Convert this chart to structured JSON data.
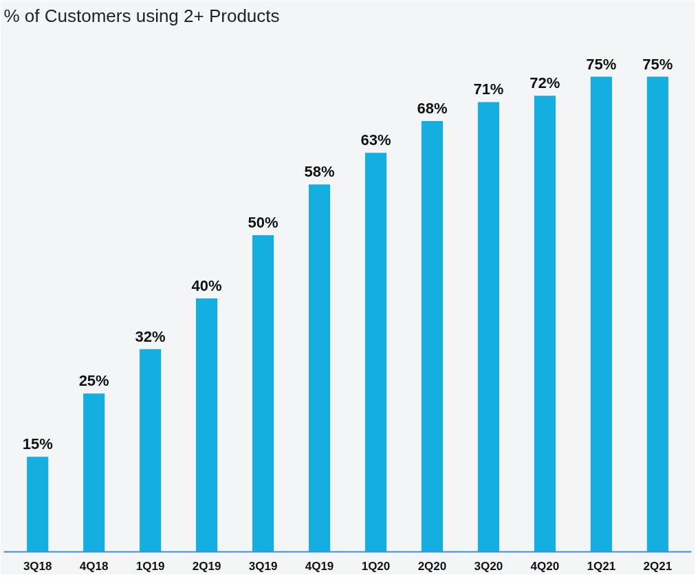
{
  "chart_data": {
    "type": "bar",
    "title": "% of Customers using 2+ Products",
    "categories": [
      "3Q18",
      "4Q18",
      "1Q19",
      "2Q19",
      "3Q19",
      "4Q19",
      "1Q20",
      "2Q20",
      "3Q20",
      "4Q20",
      "1Q21",
      "2Q21"
    ],
    "values": [
      15,
      25,
      32,
      40,
      50,
      58,
      63,
      68,
      71,
      72,
      75,
      75
    ],
    "value_labels": [
      "15%",
      "25%",
      "32%",
      "40%",
      "50%",
      "58%",
      "63%",
      "68%",
      "71%",
      "72%",
      "75%",
      "75%"
    ],
    "color": "#14aee0",
    "grid": false
  }
}
